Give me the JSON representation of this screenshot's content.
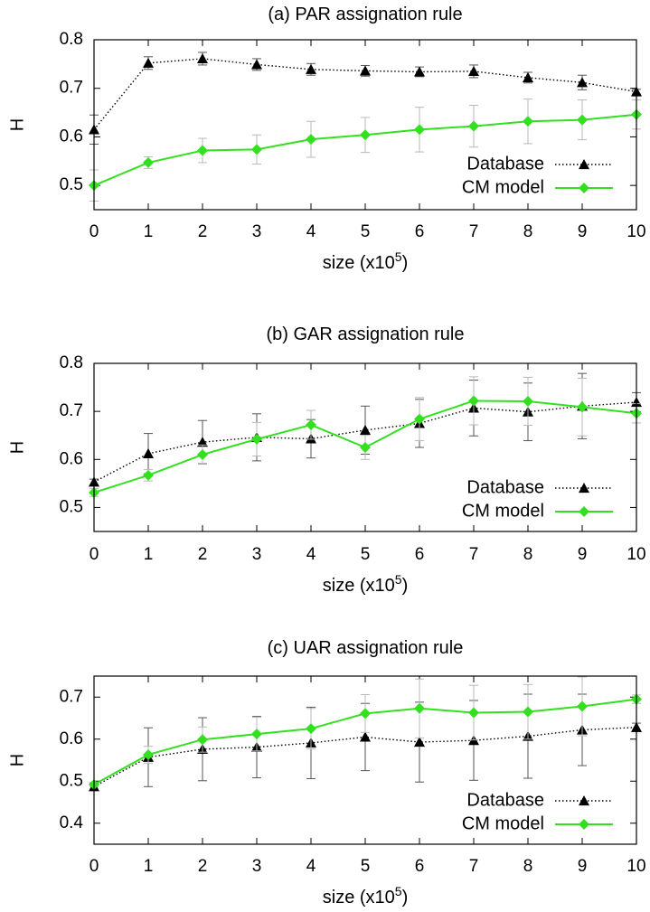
{
  "chart_data": [
    {
      "type": "line",
      "title": "(a) PAR assignation rule",
      "xlabel": "size (x10",
      "xlabel_exp": "5",
      "xlabel_close": ")",
      "ylabel": "H",
      "xlim": [
        0,
        10
      ],
      "ylim": [
        0.45,
        0.8
      ],
      "x_ticks": [
        "0",
        "1",
        "2",
        "3",
        "4",
        "5",
        "6",
        "7",
        "8",
        "9",
        "10"
      ],
      "y_ticks": [
        "0.5",
        "0.6",
        "0.7",
        "0.8"
      ],
      "y_tick_values": [
        0.5,
        0.6,
        0.7,
        0.8
      ],
      "x": [
        0,
        1,
        2,
        3,
        4,
        5,
        6,
        7,
        8,
        9,
        10
      ],
      "legend_position": "bottom-right",
      "series": [
        {
          "name": "Database",
          "color": "#000000",
          "marker": "triangle",
          "style": "dotted",
          "values": [
            0.615,
            0.752,
            0.761,
            0.749,
            0.739,
            0.736,
            0.734,
            0.735,
            0.722,
            0.712,
            0.693
          ],
          "errors": [
            0.03,
            0.013,
            0.013,
            0.012,
            0.012,
            0.011,
            0.01,
            0.013,
            0.011,
            0.015,
            0.005
          ]
        },
        {
          "name": "CM model",
          "color": "#33e01f",
          "marker": "diamond",
          "style": "solid",
          "values": [
            0.5,
            0.547,
            0.572,
            0.574,
            0.595,
            0.604,
            0.615,
            0.622,
            0.632,
            0.635,
            0.646
          ],
          "errors": [
            0.032,
            0.012,
            0.025,
            0.03,
            0.037,
            0.036,
            0.046,
            0.043,
            0.046,
            0.041,
            0.03
          ]
        }
      ]
    },
    {
      "type": "line",
      "title": "(b) GAR assignation rule",
      "xlabel": "size (x10",
      "xlabel_exp": "5",
      "xlabel_close": ")",
      "ylabel": "H",
      "xlim": [
        0,
        10
      ],
      "ylim": [
        0.45,
        0.8
      ],
      "x_ticks": [
        "0",
        "1",
        "2",
        "3",
        "4",
        "5",
        "6",
        "7",
        "8",
        "9",
        "10"
      ],
      "y_ticks": [
        "0.5",
        "0.6",
        "0.7",
        "0.8"
      ],
      "y_tick_values": [
        0.5,
        0.6,
        0.7,
        0.8
      ],
      "x": [
        0,
        1,
        2,
        3,
        4,
        5,
        6,
        7,
        8,
        9,
        10
      ],
      "legend_position": "bottom-right",
      "series": [
        {
          "name": "Database",
          "color": "#000000",
          "marker": "triangle",
          "style": "dotted",
          "values": [
            0.553,
            0.612,
            0.636,
            0.646,
            0.643,
            0.661,
            0.675,
            0.707,
            0.699,
            0.711,
            0.719
          ],
          "errors": [
            0.006,
            0.042,
            0.045,
            0.049,
            0.04,
            0.05,
            0.05,
            0.058,
            0.06,
            0.068,
            0.02
          ]
        },
        {
          "name": "CM model",
          "color": "#33e01f",
          "marker": "diamond",
          "style": "solid",
          "values": [
            0.531,
            0.567,
            0.61,
            0.642,
            0.672,
            0.625,
            0.684,
            0.722,
            0.721,
            0.709,
            0.696
          ],
          "errors": [
            0.008,
            0.012,
            0.02,
            0.035,
            0.03,
            0.025,
            0.045,
            0.05,
            0.05,
            0.06,
            0.02
          ]
        }
      ]
    },
    {
      "type": "line",
      "title": "(c) UAR assignation rule",
      "xlabel": "size (x10",
      "xlabel_exp": "5",
      "xlabel_close": ")",
      "ylabel": "H",
      "xlim": [
        0,
        10
      ],
      "ylim": [
        0.35,
        0.75
      ],
      "x_ticks": [
        "0",
        "1",
        "2",
        "3",
        "4",
        "5",
        "6",
        "7",
        "8",
        "9",
        "10"
      ],
      "y_ticks": [
        "0.4",
        "0.5",
        "0.6",
        "0.7"
      ],
      "y_tick_values": [
        0.4,
        0.5,
        0.6,
        0.7
      ],
      "x": [
        0,
        1,
        2,
        3,
        4,
        5,
        6,
        7,
        8,
        9,
        10
      ],
      "legend_position": "bottom-right",
      "series": [
        {
          "name": "Database",
          "color": "#000000",
          "marker": "triangle",
          "style": "dotted",
          "values": [
            0.487,
            0.557,
            0.576,
            0.581,
            0.591,
            0.605,
            0.593,
            0.597,
            0.607,
            0.622,
            0.628
          ],
          "errors": [
            0.008,
            0.07,
            0.075,
            0.073,
            0.085,
            0.08,
            0.095,
            0.095,
            0.1,
            0.085,
            0.01
          ]
        },
        {
          "name": "CM model",
          "color": "#33e01f",
          "marker": "diamond",
          "style": "solid",
          "values": [
            0.492,
            0.563,
            0.599,
            0.612,
            0.625,
            0.661,
            0.673,
            0.663,
            0.665,
            0.678,
            0.695
          ],
          "errors": [
            0.005,
            0.02,
            0.03,
            0.04,
            0.048,
            0.045,
            0.07,
            0.065,
            0.065,
            0.07,
            0.01
          ]
        }
      ]
    }
  ]
}
